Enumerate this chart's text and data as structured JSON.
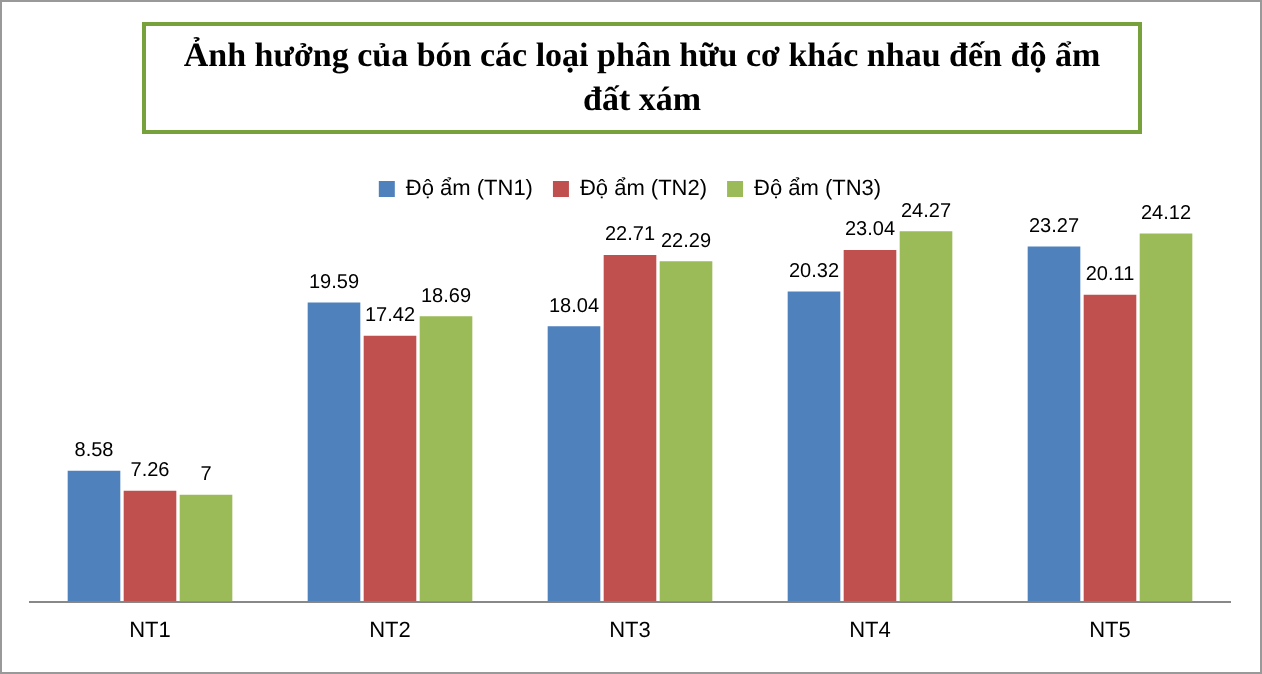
{
  "chart_data": {
    "type": "bar",
    "title": "Ảnh hưởng của bón các loại phân hữu cơ khác nhau đến độ ẩm đất xám",
    "categories": [
      "NT1",
      "NT2",
      "NT3",
      "NT4",
      "NT5"
    ],
    "series": [
      {
        "name": "Độ ẩm (TN1)",
        "color": "#4f81bd",
        "values": [
          8.58,
          19.59,
          18.04,
          20.32,
          23.27
        ]
      },
      {
        "name": "Độ ẩm (TN2)",
        "color": "#c0504d",
        "values": [
          7.26,
          17.42,
          22.71,
          23.04,
          20.11
        ]
      },
      {
        "name": "Độ ẩm (TN3)",
        "color": "#9bbb59",
        "values": [
          7,
          18.69,
          22.29,
          24.27,
          24.12
        ]
      }
    ],
    "data_labels": true,
    "legend": "top",
    "grid": false
  }
}
